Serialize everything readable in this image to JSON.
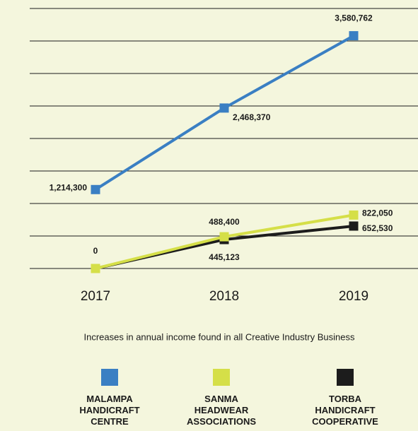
{
  "chart_data": {
    "type": "line",
    "subtitle": "Increases in annual income found in all Creative Industry Business",
    "categories": [
      "2017",
      "2018",
      "2019"
    ],
    "ylim": [
      0,
      4000000
    ],
    "yticks": [
      0,
      500000,
      1000000,
      1500000,
      2000000,
      2500000,
      3000000,
      3500000,
      4000000
    ],
    "grid": true,
    "series": [
      {
        "name": "MALAMPA HANDICRAFT CENTRE",
        "color": "#3a7fc3",
        "values": [
          1214300,
          2468370,
          3580762
        ],
        "value_labels": [
          "1,214,300",
          "2,468,370",
          "3,580,762"
        ]
      },
      {
        "name": "SANMA HEADWEAR ASSOCIATIONS",
        "color": "#d5df48",
        "values": [
          0,
          488400,
          822050
        ],
        "value_labels": [
          "0",
          "488,400",
          "822,050"
        ]
      },
      {
        "name": "TORBA HANDICRAFT COOPERATIVE",
        "color": "#1c1c1c",
        "values": [
          0,
          445123,
          652530
        ],
        "value_labels": [
          null,
          "445,123",
          "652,530"
        ]
      }
    ]
  }
}
